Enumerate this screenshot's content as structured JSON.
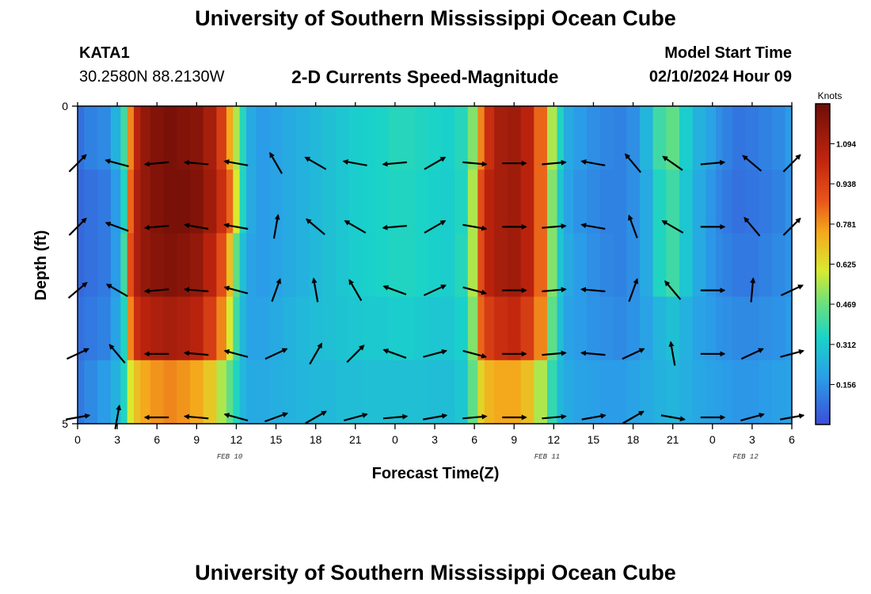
{
  "header": {
    "main_title": "University of Southern Mississippi Ocean Cube",
    "station_id": "KATA1",
    "station_coords": "30.2580N  88.2130W",
    "chart_subtitle": "2-D Currents Speed-Magnitude",
    "model_label": "Model Start Time",
    "model_time": "02/10/2024 Hour 09"
  },
  "footer": {
    "title": "University of Southern Mississippi Ocean Cube"
  },
  "chart_data": {
    "type": "heatmap",
    "title": "2-D Currents Speed-Magnitude",
    "xlabel": "Forecast Time(Z)",
    "ylabel": "Depth (ft)",
    "x_range_hours": [
      0,
      54
    ],
    "y_range_ft": [
      0,
      5
    ],
    "x_tick_labels": [
      "0",
      "3",
      "6",
      "9",
      "12",
      "15",
      "18",
      "21",
      "0",
      "3",
      "6",
      "9",
      "12",
      "15",
      "18",
      "21",
      "0",
      "3",
      "6"
    ],
    "y_tick_labels": [
      "0",
      "5"
    ],
    "date_labels": [
      {
        "text": "FEB 10",
        "hour": 11.5
      },
      {
        "text": "FEB 11",
        "hour": 35.5
      },
      {
        "text": "FEB 12",
        "hour": 50.5
      }
    ],
    "colorbar": {
      "unit_label": "Knots",
      "min": 0,
      "max": 1.25,
      "tick_labels": [
        "0.156",
        "0.312",
        "0.469",
        "0.625",
        "0.781",
        "0.938",
        "1.094"
      ],
      "tick_values": [
        0.156,
        0.312,
        0.469,
        0.625,
        0.781,
        0.938,
        1.094
      ]
    },
    "depth_band_edges_ft": [
      0,
      1,
      2,
      3,
      4,
      5
    ],
    "speed_profile_knots": {
      "hours": [
        0,
        1,
        2,
        3,
        3.5,
        4,
        4.5,
        5,
        6,
        7,
        8,
        9,
        10,
        11,
        11.5,
        12,
        12.5,
        13,
        14,
        15,
        16,
        17,
        18,
        19,
        20,
        21,
        22,
        23,
        24,
        25,
        26,
        27,
        28,
        29,
        30,
        30.5,
        31,
        32,
        33,
        34,
        35,
        36,
        36.5,
        37,
        38,
        39,
        40,
        41,
        42,
        43,
        44,
        45,
        46,
        47,
        48,
        48.5,
        49,
        50,
        51,
        52,
        53,
        54
      ],
      "by_depth_band": [
        [
          0.08,
          0.12,
          0.14,
          0.24,
          0.4,
          0.8,
          1.05,
          1.15,
          1.2,
          1.22,
          1.2,
          1.18,
          1.1,
          0.95,
          0.75,
          0.55,
          0.36,
          0.22,
          0.18,
          0.2,
          0.22,
          0.24,
          0.26,
          0.28,
          0.3,
          0.32,
          0.33,
          0.34,
          0.36,
          0.36,
          0.35,
          0.34,
          0.33,
          0.36,
          0.5,
          0.8,
          1.0,
          1.1,
          1.12,
          1.05,
          0.85,
          0.55,
          0.35,
          0.22,
          0.18,
          0.15,
          0.13,
          0.12,
          0.15,
          0.25,
          0.4,
          0.45,
          0.32,
          0.24,
          0.2,
          0.15,
          0.12,
          0.09,
          0.1,
          0.12,
          0.14,
          0.18
        ],
        [
          0.06,
          0.08,
          0.1,
          0.18,
          0.35,
          0.85,
          1.08,
          1.15,
          1.2,
          1.22,
          1.22,
          1.2,
          1.12,
          1.0,
          0.85,
          0.6,
          0.35,
          0.22,
          0.18,
          0.2,
          0.22,
          0.24,
          0.26,
          0.28,
          0.3,
          0.32,
          0.33,
          0.34,
          0.35,
          0.35,
          0.34,
          0.33,
          0.32,
          0.35,
          0.55,
          0.9,
          1.05,
          1.1,
          1.12,
          1.05,
          0.85,
          0.5,
          0.3,
          0.2,
          0.16,
          0.14,
          0.12,
          0.12,
          0.15,
          0.22,
          0.35,
          0.4,
          0.3,
          0.22,
          0.17,
          0.13,
          0.1,
          0.08,
          0.09,
          0.1,
          0.12,
          0.16
        ],
        [
          0.06,
          0.08,
          0.1,
          0.18,
          0.4,
          0.9,
          1.08,
          1.15,
          1.18,
          1.2,
          1.18,
          1.15,
          1.05,
          0.9,
          0.7,
          0.45,
          0.28,
          0.2,
          0.18,
          0.2,
          0.22,
          0.24,
          0.26,
          0.28,
          0.3,
          0.32,
          0.33,
          0.34,
          0.35,
          0.35,
          0.34,
          0.33,
          0.32,
          0.36,
          0.55,
          0.9,
          1.05,
          1.1,
          1.12,
          1.05,
          0.85,
          0.5,
          0.3,
          0.22,
          0.18,
          0.15,
          0.13,
          0.12,
          0.15,
          0.22,
          0.35,
          0.4,
          0.3,
          0.22,
          0.17,
          0.14,
          0.12,
          0.1,
          0.1,
          0.12,
          0.14,
          0.16
        ],
        [
          0.08,
          0.1,
          0.12,
          0.2,
          0.35,
          0.8,
          1.0,
          1.05,
          1.08,
          1.1,
          1.08,
          1.05,
          0.95,
          0.8,
          0.6,
          0.4,
          0.26,
          0.2,
          0.2,
          0.22,
          0.24,
          0.26,
          0.27,
          0.28,
          0.29,
          0.3,
          0.31,
          0.31,
          0.32,
          0.32,
          0.31,
          0.3,
          0.3,
          0.33,
          0.5,
          0.85,
          0.95,
          1.0,
          1.02,
          0.95,
          0.8,
          0.45,
          0.28,
          0.2,
          0.18,
          0.16,
          0.15,
          0.14,
          0.16,
          0.2,
          0.25,
          0.28,
          0.24,
          0.2,
          0.18,
          0.16,
          0.15,
          0.14,
          0.14,
          0.15,
          0.16,
          0.18
        ],
        [
          0.1,
          0.14,
          0.18,
          0.24,
          0.35,
          0.6,
          0.7,
          0.75,
          0.78,
          0.8,
          0.78,
          0.75,
          0.68,
          0.55,
          0.45,
          0.35,
          0.26,
          0.22,
          0.22,
          0.23,
          0.24,
          0.25,
          0.26,
          0.26,
          0.27,
          0.27,
          0.28,
          0.28,
          0.28,
          0.28,
          0.28,
          0.27,
          0.27,
          0.3,
          0.45,
          0.65,
          0.72,
          0.75,
          0.75,
          0.7,
          0.55,
          0.38,
          0.26,
          0.22,
          0.2,
          0.19,
          0.18,
          0.18,
          0.2,
          0.22,
          0.24,
          0.25,
          0.23,
          0.21,
          0.2,
          0.19,
          0.18,
          0.17,
          0.17,
          0.18,
          0.19,
          0.2
        ]
      ]
    },
    "current_vectors": {
      "hours": [
        0,
        3,
        6,
        9,
        12,
        15,
        18,
        21,
        24,
        27,
        30,
        33,
        36,
        39,
        42,
        45,
        48,
        51,
        54
      ],
      "depths_ft": [
        1,
        2,
        3,
        4,
        5
      ],
      "angles_deg": [
        [
          45,
          165,
          185,
          175,
          170,
          120,
          150,
          170,
          185,
          30,
          355,
          0,
          5,
          170,
          130,
          145,
          5,
          140,
          45
        ],
        [
          45,
          160,
          185,
          170,
          170,
          80,
          140,
          150,
          185,
          30,
          350,
          0,
          5,
          170,
          110,
          150,
          0,
          130,
          45
        ],
        [
          40,
          150,
          185,
          175,
          165,
          70,
          100,
          120,
          160,
          25,
          345,
          0,
          5,
          175,
          70,
          130,
          0,
          85,
          25
        ],
        [
          25,
          130,
          180,
          175,
          165,
          25,
          60,
          45,
          160,
          15,
          345,
          0,
          5,
          175,
          25,
          100,
          0,
          25,
          15
        ],
        [
          10,
          80,
          180,
          175,
          165,
          20,
          30,
          15,
          5,
          10,
          5,
          0,
          5,
          10,
          30,
          350,
          0,
          15,
          10
        ]
      ],
      "speed_knots": [
        0.6,
        0.6,
        0.6,
        0.6,
        0.6,
        0.6,
        0.6,
        0.6,
        0.6,
        0.6,
        0.6,
        0.6,
        0.6,
        0.6,
        0.6,
        0.6,
        0.6,
        0.6,
        0.6
      ]
    }
  }
}
